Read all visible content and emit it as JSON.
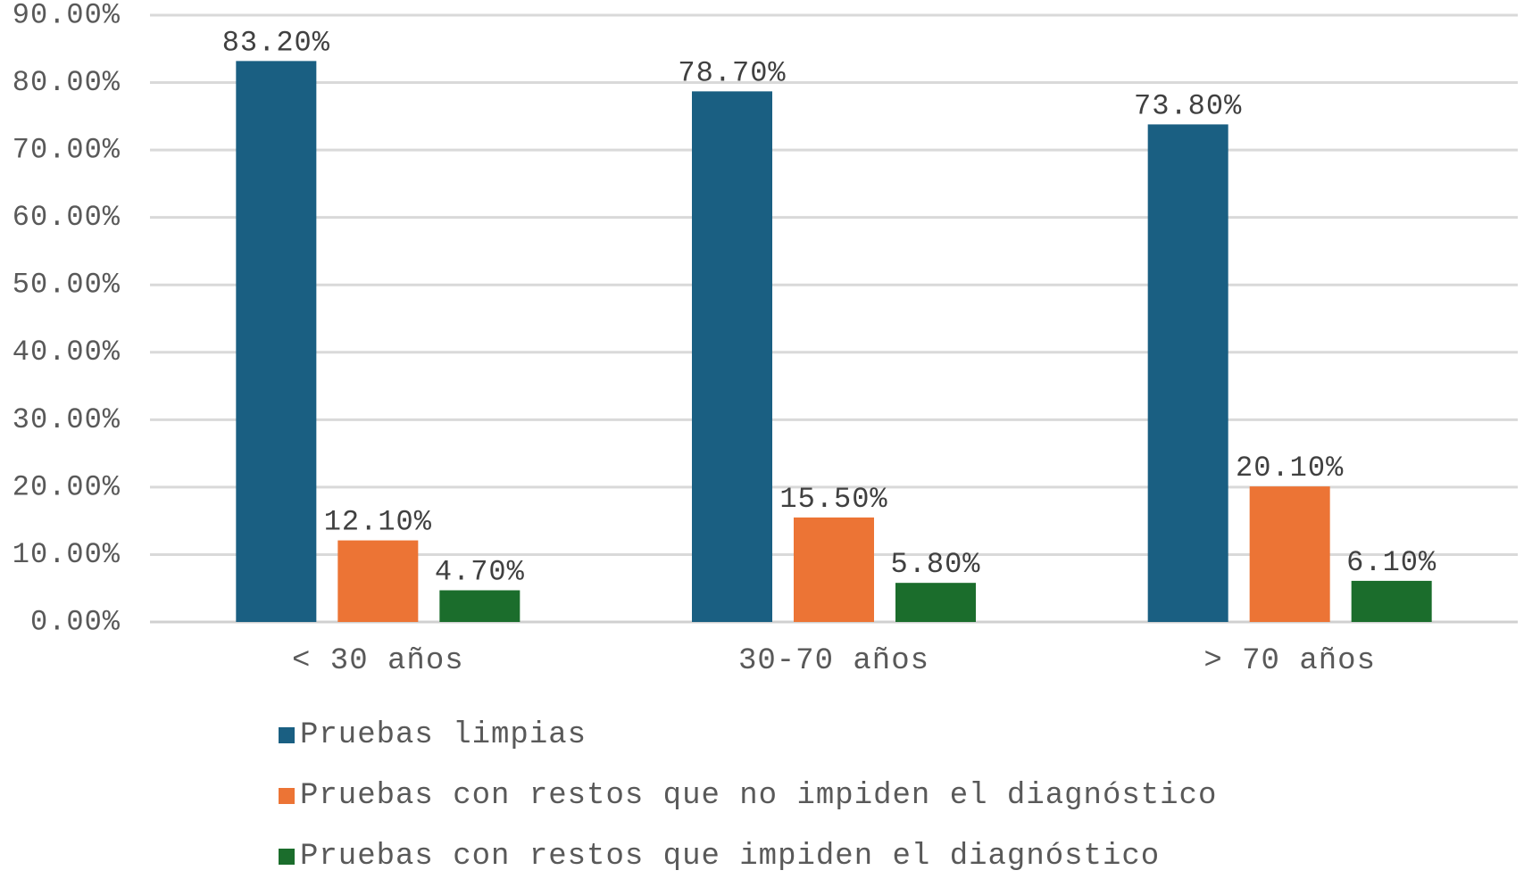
{
  "chart_data": {
    "type": "bar",
    "categories": [
      "< 30 años",
      "30-70 años",
      "> 70 años"
    ],
    "series": [
      {
        "name": "Pruebas limpias",
        "values": [
          83.2,
          78.7,
          73.8
        ],
        "color": "#1a5f82"
      },
      {
        "name": "Pruebas con restos que no impiden el diagnóstico",
        "values": [
          12.1,
          15.5,
          20.1
        ],
        "color": "#ec7435"
      },
      {
        "name": "Pruebas con restos que impiden el diagnóstico",
        "values": [
          4.7,
          5.8,
          6.1
        ],
        "color": "#1b6d2c"
      }
    ],
    "data_labels": [
      [
        "83.20%",
        "78.70%",
        "73.80%"
      ],
      [
        "12.10%",
        "15.50%",
        "20.10%"
      ],
      [
        "4.70%",
        "5.80%",
        "6.10%"
      ]
    ],
    "y_ticks": [
      "0.00%",
      "10.00%",
      "20.00%",
      "30.00%",
      "40.00%",
      "50.00%",
      "60.00%",
      "70.00%",
      "80.00%",
      "90.00%"
    ],
    "ylim": [
      0,
      90
    ],
    "grid": true,
    "legend_position": "bottom",
    "title": "",
    "xlabel": "",
    "ylabel": ""
  }
}
